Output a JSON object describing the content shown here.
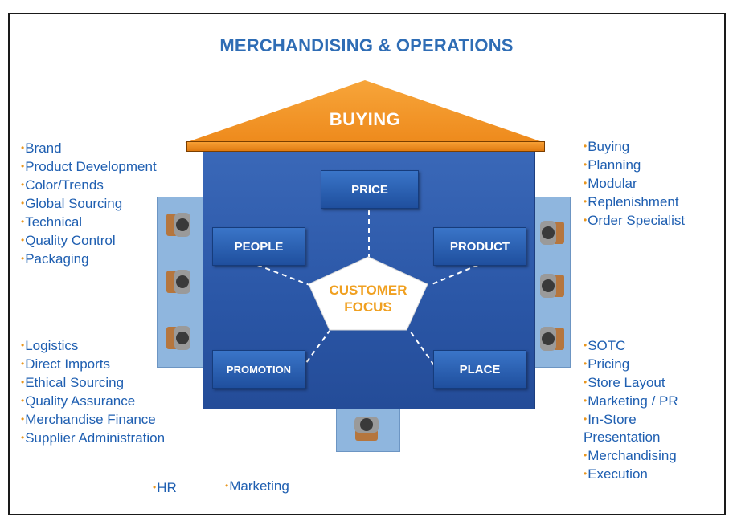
{
  "title": "MERCHANDISING & OPERATIONS",
  "roof_label": "BUYING",
  "center_label_line1": "CUSTOMER",
  "center_label_line2": "FOCUS",
  "boxes": {
    "price": "PRICE",
    "people": "PEOPLE",
    "product": "PRODUCT",
    "promotion": "PROMOTION",
    "place": "PLACE"
  },
  "top_left_list": [
    "Brand",
    "Product Development",
    "Color/Trends",
    "Global Sourcing",
    "Technical",
    "Quality Control",
    "Packaging"
  ],
  "bottom_left_list": [
    "Logistics",
    "Direct Imports",
    "Ethical Sourcing",
    "Quality Assurance",
    "Merchandise Finance",
    "Supplier Administration"
  ],
  "top_right_list": [
    "Buying",
    "Planning",
    "Modular",
    "Replenishment",
    "Order Specialist"
  ],
  "bottom_right_list": [
    "SOTC",
    "Pricing",
    "Store Layout",
    "Marketing / PR",
    "In-Store",
    "Presentation",
    "Merchandising",
    "Execution"
  ],
  "bottom_right_bullets": [
    true,
    true,
    true,
    true,
    true,
    false,
    true,
    true
  ],
  "footer": {
    "hr": "HR",
    "marketing": "Marketing"
  },
  "colors": {
    "title": "#2f6db5",
    "roof": "#f39a2a",
    "house": "#2a56a6",
    "focus_text": "#f0a020",
    "list_text": "#1f5fb1",
    "bullet": "#e8961e"
  }
}
